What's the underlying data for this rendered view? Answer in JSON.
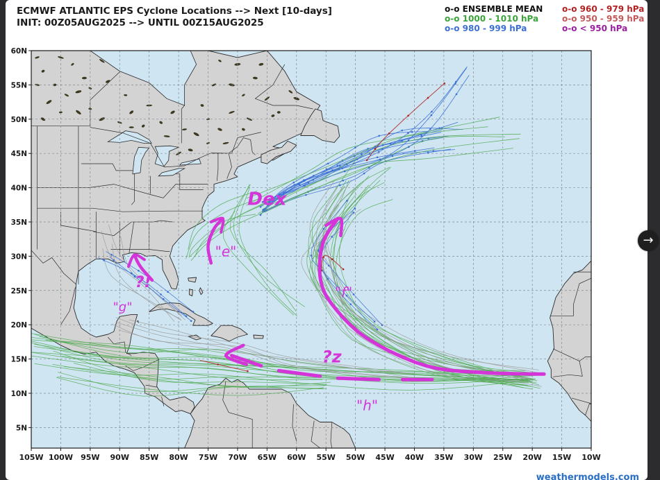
{
  "viewer": {
    "next_icon": "→"
  },
  "chart_data": {
    "type": "map",
    "title": "ECMWF ATLANTIC EPS Cyclone Locations --> Next [10-days]",
    "subtitle": "INIT: 00Z05AUG2025 --> UNTIL 00Z15AUG2025",
    "legend": [
      {
        "label": "ENSEMBLE MEAN",
        "color": "#111111"
      },
      {
        "label": "960 - 979 hPa",
        "color": "#b22222"
      },
      {
        "label": "1000 - 1010 hPa",
        "color": "#3aa33a"
      },
      {
        "label": "950 - 959 hPa",
        "color": "#c25a5a"
      },
      {
        "label": "980 - 999 hPa",
        "color": "#3b6fd4"
      },
      {
        "label": "< 950 hPa",
        "color": "#9a1fa0"
      }
    ],
    "legend_marker": "o-o",
    "lon_range": [
      -105,
      -10
    ],
    "lat_range": [
      2,
      60
    ],
    "x_ticks": [
      {
        "lon": -105,
        "label": "105W"
      },
      {
        "lon": -100,
        "label": "100W"
      },
      {
        "lon": -95,
        "label": "95W"
      },
      {
        "lon": -90,
        "label": "90W"
      },
      {
        "lon": -85,
        "label": "85W"
      },
      {
        "lon": -80,
        "label": "80W"
      },
      {
        "lon": -75,
        "label": "75W"
      },
      {
        "lon": -70,
        "label": "70W"
      },
      {
        "lon": -65,
        "label": "65W"
      },
      {
        "lon": -60,
        "label": "60W"
      },
      {
        "lon": -55,
        "label": "55W"
      },
      {
        "lon": -50,
        "label": "50W"
      },
      {
        "lon": -45,
        "label": "45W"
      },
      {
        "lon": -40,
        "label": "40W"
      },
      {
        "lon": -35,
        "label": "35W"
      },
      {
        "lon": -30,
        "label": "30W"
      },
      {
        "lon": -25,
        "label": "25W"
      },
      {
        "lon": -20,
        "label": "20W"
      },
      {
        "lon": -15,
        "label": "15W"
      },
      {
        "lon": -10,
        "label": "10W"
      }
    ],
    "y_ticks": [
      {
        "lat": 60,
        "label": "60N"
      },
      {
        "lat": 55,
        "label": "55N"
      },
      {
        "lat": 50,
        "label": "50N"
      },
      {
        "lat": 45,
        "label": "45N"
      },
      {
        "lat": 40,
        "label": "40N"
      },
      {
        "lat": 35,
        "label": "35N"
      },
      {
        "lat": 30,
        "label": "30N"
      },
      {
        "lat": 25,
        "label": "25N"
      },
      {
        "lat": 20,
        "label": "20N"
      },
      {
        "lat": 15,
        "label": "15N"
      },
      {
        "lat": 10,
        "label": "10N"
      },
      {
        "lat": 5,
        "label": "5N"
      }
    ],
    "grid": true,
    "annotations": [
      {
        "text": "Dex",
        "lon": -65,
        "lat": 37.5
      },
      {
        "text": "\"e\"",
        "lon": -72,
        "lat": 30
      },
      {
        "text": "?!",
        "lon": -86,
        "lat": 25.5
      },
      {
        "text": "\"g\"",
        "lon": -89.5,
        "lat": 22
      },
      {
        "text": "\"f\"",
        "lon": -52,
        "lat": 24
      },
      {
        "text": "?z",
        "lon": -54,
        "lat": 14.5
      },
      {
        "text": "\"h\"",
        "lon": -48,
        "lat": 7.5
      }
    ],
    "watermark": "weathermodels.com"
  }
}
